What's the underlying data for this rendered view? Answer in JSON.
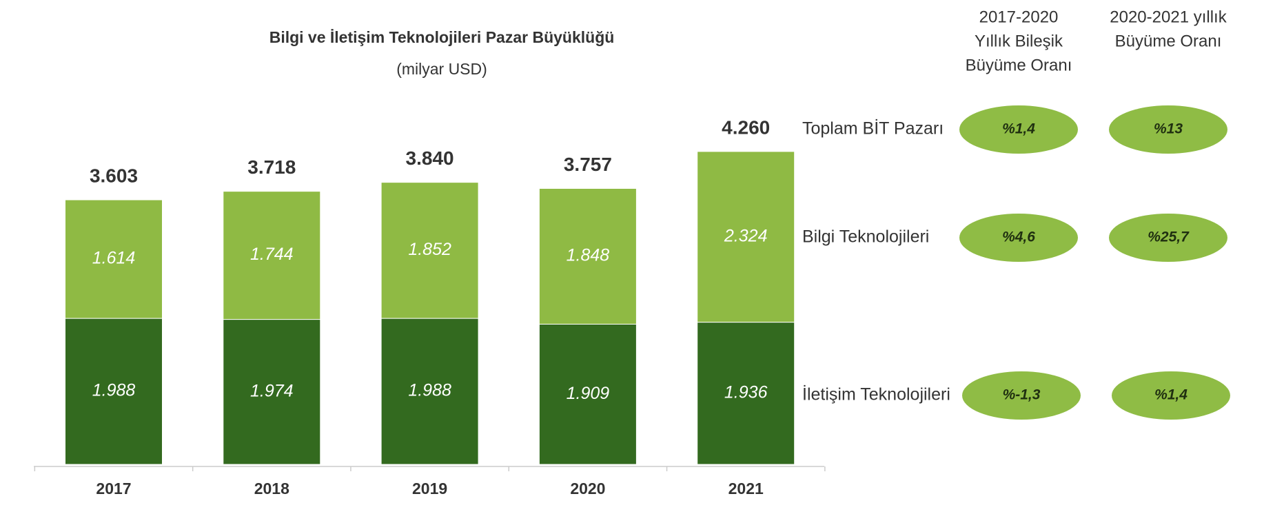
{
  "chart_data": {
    "type": "stacked_bar",
    "title": "Bilgi ve İletişim Teknolojileri Pazar Büyüklüğü",
    "subtitle": "(milyar USD)",
    "categories": [
      "2017",
      "2018",
      "2019",
      "2020",
      "2021"
    ],
    "series": [
      {
        "name": "İletişim Teknolojileri",
        "color": "#336a1f",
        "values": [
          1988,
          1974,
          1988,
          1909,
          1936
        ],
        "value_labels": [
          "1.988",
          "1.974",
          "1.988",
          "1.909",
          "1.936"
        ]
      },
      {
        "name": "Bilgi Teknolojileri",
        "color": "#8fba44",
        "values": [
          1614,
          1744,
          1852,
          1848,
          2324
        ],
        "value_labels": [
          "1.614",
          "1.744",
          "1.852",
          "1.848",
          "2.324"
        ]
      }
    ],
    "totals": {
      "name": "Toplam BİT Pazarı",
      "values": [
        3603,
        3718,
        3840,
        3757,
        4260
      ],
      "value_labels": [
        "3.603",
        "3.718",
        "3.840",
        "3.757",
        "4.260"
      ]
    },
    "growth": {
      "headers": [
        [
          "2017-2020",
          "Yıllık Bileşik",
          "Büyüme Oranı"
        ],
        [
          "2020-2021 yıllık",
          "Büyüme Oranı"
        ]
      ],
      "rows": [
        {
          "label": "Toplam BİT Pazarı",
          "values": [
            "%1,4",
            "%13"
          ]
        },
        {
          "label": "Bilgi Teknolojileri",
          "values": [
            "%4,6",
            "%25,7"
          ]
        },
        {
          "label": "İletişim Teknolojileri",
          "values": [
            "%-1,3",
            "%1,4"
          ]
        }
      ],
      "color": "#8fbc45"
    }
  }
}
